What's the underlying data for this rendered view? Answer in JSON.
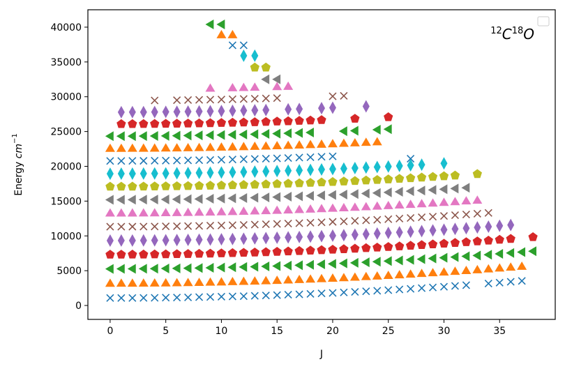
{
  "chart_data": {
    "type": "scatter",
    "title": "",
    "xlabel": "J",
    "ylabel_main": "Energy ",
    "ylabel_unit": "cm",
    "ylabel_exp": "−1",
    "annotation": {
      "pre": "12",
      "c": "C",
      "mid": "18",
      "o": "O"
    },
    "xlim": [
      -2.0,
      40.0
    ],
    "ylim": [
      -2000,
      42500
    ],
    "xticks": [
      0,
      5,
      10,
      15,
      20,
      25,
      30,
      35
    ],
    "yticks": [
      0,
      5000,
      10000,
      15000,
      20000,
      25000,
      30000,
      35000,
      40000
    ],
    "legend": "top-right, empty",
    "colors": [
      "#1f77b4",
      "#ff7f0e",
      "#2ca02c",
      "#d62728",
      "#9467bd",
      "#8c564b",
      "#e377c2",
      "#7f7f7f",
      "#bcbd22",
      "#17becf"
    ],
    "markers": [
      "x",
      "triangle-up",
      "triangle-left",
      "pentagon",
      "thin-diamond",
      "x",
      "triangle-up",
      "triangle-left",
      "pentagon",
      "thin-diamond"
    ],
    "series": [
      {
        "v": 0,
        "color": "#1f77b4",
        "marker": "x",
        "E0": 1070,
        "Jmin": 0,
        "Jmax": 37,
        "J": [
          0,
          1,
          2,
          3,
          4,
          5,
          6,
          7,
          8,
          9,
          10,
          11,
          12,
          13,
          14,
          15,
          16,
          17,
          18,
          19,
          20,
          21,
          22,
          23,
          24,
          25,
          26,
          27,
          28,
          29,
          30,
          31,
          32,
          34,
          35,
          36,
          37
        ],
        "extra": [
          {
            "J": 27,
            "E": 21100
          },
          {
            "J": 11,
            "E": 37400
          },
          {
            "J": 12,
            "E": 37400
          }
        ]
      },
      {
        "v": 1,
        "color": "#ff7f0e",
        "marker": "triangle-up",
        "E0": 3180,
        "Jmin": 0,
        "Jmax": 37,
        "J": [
          0,
          1,
          2,
          3,
          4,
          5,
          6,
          7,
          8,
          9,
          10,
          11,
          12,
          13,
          14,
          15,
          16,
          17,
          18,
          19,
          20,
          21,
          22,
          23,
          24,
          25,
          26,
          27,
          28,
          29,
          30,
          31,
          32,
          33,
          34,
          35,
          36,
          37
        ],
        "extra": [
          {
            "J": 10,
            "E": 38900
          },
          {
            "J": 11,
            "E": 38900
          }
        ]
      },
      {
        "v": 2,
        "color": "#2ca02c",
        "marker": "triangle-left",
        "E0": 5260,
        "Jmin": 0,
        "Jmax": 38,
        "J": [
          0,
          1,
          2,
          3,
          4,
          5,
          6,
          7,
          8,
          9,
          10,
          11,
          12,
          13,
          14,
          15,
          16,
          17,
          18,
          19,
          20,
          21,
          22,
          23,
          24,
          25,
          26,
          27,
          28,
          29,
          30,
          31,
          32,
          33,
          34,
          35,
          36,
          37,
          38
        ],
        "extra": [
          {
            "J": 9,
            "E": 40400
          },
          {
            "J": 10,
            "E": 40400
          }
        ]
      },
      {
        "v": 3,
        "color": "#d62728",
        "marker": "pentagon",
        "E0": 7310,
        "Jmin": 0,
        "Jmax": 38,
        "J": [
          0,
          1,
          2,
          3,
          4,
          5,
          6,
          7,
          8,
          9,
          10,
          11,
          12,
          13,
          14,
          15,
          16,
          17,
          18,
          19,
          20,
          21,
          22,
          23,
          24,
          25,
          26,
          27,
          28,
          29,
          30,
          31,
          32,
          33,
          34,
          35,
          36,
          38
        ],
        "extra": []
      },
      {
        "v": 4,
        "color": "#9467bd",
        "marker": "thin-diamond",
        "E0": 9330,
        "Jmin": 0,
        "Jmax": 36,
        "J": [
          0,
          1,
          2,
          3,
          4,
          5,
          6,
          7,
          8,
          9,
          10,
          11,
          12,
          13,
          14,
          15,
          16,
          17,
          18,
          19,
          20,
          21,
          22,
          23,
          24,
          25,
          26,
          27,
          28,
          29,
          30,
          31,
          32,
          33,
          34,
          35,
          36
        ],
        "extra": []
      },
      {
        "v": 5,
        "color": "#8c564b",
        "marker": "x",
        "E0": 11320,
        "Jmin": 0,
        "Jmax": 34,
        "J": [
          0,
          1,
          2,
          3,
          4,
          5,
          6,
          7,
          8,
          9,
          10,
          11,
          12,
          13,
          14,
          15,
          16,
          17,
          18,
          19,
          20,
          21,
          22,
          23,
          24,
          25,
          26,
          27,
          28,
          29,
          30,
          31,
          32,
          33,
          34
        ],
        "extra": []
      },
      {
        "v": 6,
        "color": "#e377c2",
        "marker": "triangle-up",
        "E0": 13270,
        "Jmin": 0,
        "Jmax": 33,
        "J": [
          0,
          1,
          2,
          3,
          4,
          5,
          6,
          7,
          8,
          9,
          10,
          11,
          12,
          13,
          14,
          15,
          16,
          17,
          18,
          19,
          20,
          21,
          22,
          23,
          24,
          25,
          26,
          27,
          28,
          29,
          30,
          31,
          32,
          33
        ],
        "extra": []
      },
      {
        "v": 7,
        "color": "#7f7f7f",
        "marker": "triangle-left",
        "E0": 15190,
        "Jmin": 0,
        "Jmax": 32,
        "J": [
          0,
          1,
          2,
          3,
          4,
          5,
          6,
          7,
          8,
          9,
          10,
          11,
          12,
          13,
          14,
          15,
          16,
          17,
          18,
          19,
          20,
          21,
          22,
          23,
          24,
          25,
          26,
          27,
          28,
          29,
          30,
          31,
          32
        ],
        "extra": [
          {
            "J": 14,
            "E": 32500
          },
          {
            "J": 15,
            "E": 32500
          }
        ]
      },
      {
        "v": 8,
        "color": "#bcbd22",
        "marker": "pentagon",
        "E0": 17080,
        "Jmin": 0,
        "Jmax": 33,
        "J": [
          0,
          1,
          2,
          3,
          4,
          5,
          6,
          7,
          8,
          9,
          10,
          11,
          12,
          13,
          14,
          15,
          16,
          17,
          18,
          19,
          20,
          21,
          22,
          23,
          24,
          25,
          26,
          27,
          28,
          29,
          30,
          31,
          33
        ],
        "extra": [
          {
            "J": 13,
            "E": 34200
          },
          {
            "J": 14,
            "E": 34200
          }
        ]
      },
      {
        "v": 9,
        "color": "#17becf",
        "marker": "thin-diamond",
        "E0": 18940,
        "Jmin": 0,
        "Jmax": 30,
        "J": [
          0,
          1,
          2,
          3,
          4,
          5,
          6,
          7,
          8,
          9,
          10,
          11,
          12,
          13,
          14,
          15,
          16,
          17,
          18,
          19,
          20,
          21,
          22,
          23,
          24,
          25,
          26,
          27,
          28,
          30
        ],
        "extra": [
          {
            "J": 12,
            "E": 35900
          },
          {
            "J": 13,
            "E": 35900
          }
        ]
      },
      {
        "v": 10,
        "color": "#1f77b4",
        "marker": "x",
        "E0": 20770,
        "Jmin": 0,
        "Jmax": 20,
        "J": [
          0,
          1,
          2,
          3,
          4,
          5,
          6,
          7,
          8,
          9,
          10,
          11,
          12,
          13,
          14,
          15,
          16,
          17,
          18,
          19,
          20
        ],
        "extra": []
      },
      {
        "v": 11,
        "color": "#ff7f0e",
        "marker": "triangle-up",
        "E0": 22570,
        "Jmin": 0,
        "Jmax": 24,
        "J": [
          0,
          1,
          2,
          3,
          4,
          5,
          6,
          7,
          8,
          9,
          10,
          11,
          12,
          13,
          14,
          15,
          16,
          17,
          18,
          19,
          20,
          21,
          22,
          23,
          24
        ],
        "extra": []
      },
      {
        "v": 12,
        "color": "#2ca02c",
        "marker": "triangle-left",
        "E0": 24330,
        "Jmin": 0,
        "Jmax": 25,
        "J": [
          0,
          1,
          2,
          3,
          4,
          5,
          6,
          7,
          8,
          9,
          10,
          11,
          12,
          13,
          14,
          15,
          16,
          17,
          18,
          21,
          22,
          24,
          25
        ],
        "extra": []
      },
      {
        "v": 13,
        "color": "#d62728",
        "marker": "pentagon",
        "E0": 26070,
        "Jmin": 1,
        "Jmax": 25,
        "J": [
          1,
          2,
          3,
          4,
          5,
          6,
          7,
          8,
          9,
          10,
          11,
          12,
          13,
          14,
          15,
          16,
          17,
          18,
          19,
          22,
          25
        ],
        "extra": []
      },
      {
        "v": 14,
        "color": "#9467bd",
        "marker": "thin-diamond",
        "E0": 27780,
        "Jmin": 1,
        "Jmax": 23,
        "J": [
          1,
          2,
          3,
          4,
          5,
          6,
          7,
          8,
          9,
          10,
          11,
          12,
          13,
          14,
          16,
          17,
          19,
          20,
          23
        ],
        "extra": []
      },
      {
        "v": 15,
        "color": "#8c564b",
        "marker": "x",
        "E0": 29440,
        "Jmin": 4,
        "Jmax": 21,
        "J": [
          4,
          6,
          7,
          8,
          9,
          10,
          11,
          12,
          13,
          14,
          15,
          20,
          21
        ],
        "extra": []
      },
      {
        "v": 16,
        "color": "#e377c2",
        "marker": "triangle-up",
        "E0": 31080,
        "Jmin": 9,
        "Jmax": 16,
        "J": [
          9,
          11,
          12,
          13,
          15,
          16
        ],
        "extra": []
      }
    ]
  }
}
